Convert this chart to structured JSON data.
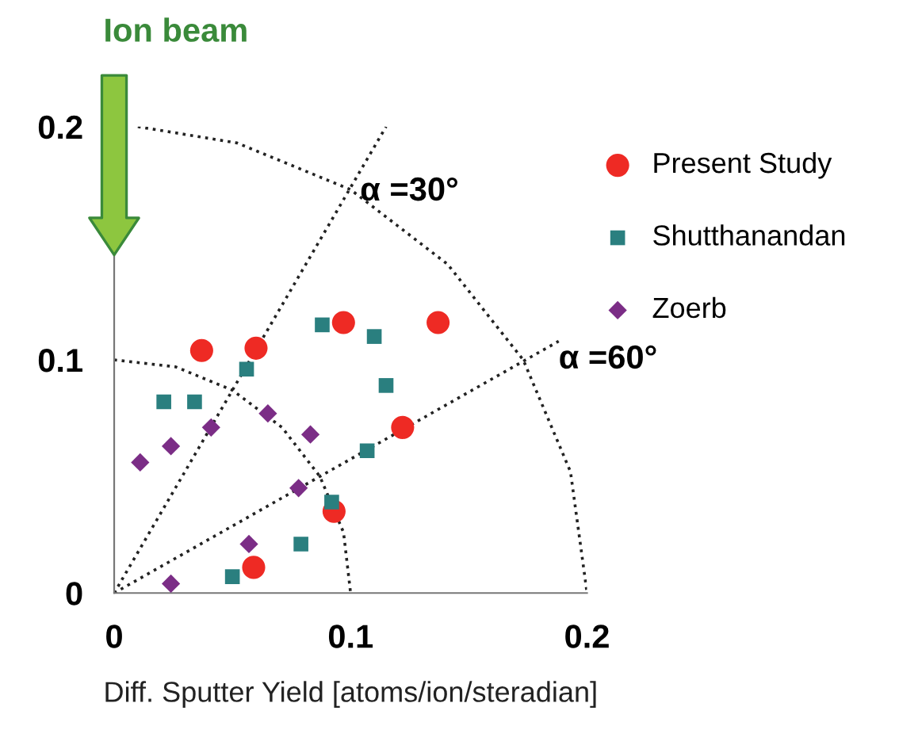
{
  "chart_data": {
    "type": "scatter",
    "xlabel": "Diff. Sputter Yield [atoms/ion/steradian]",
    "xlim": [
      0,
      0.2
    ],
    "ylim": [
      0,
      0.2
    ],
    "xticks": [
      0,
      0.1,
      0.2
    ],
    "yticks": [
      0,
      0.1,
      0.2
    ],
    "grid": false,
    "legend": "right",
    "annotations": [
      "Ion beam",
      "α =30°",
      "α =60°"
    ],
    "series": [
      {
        "name": "Present Study",
        "color": "#ee2a24",
        "marker": "circle",
        "x": [
          0.037,
          0.06,
          0.097,
          0.137,
          0.122,
          0.093,
          0.059
        ],
        "values": [
          0.104,
          0.105,
          0.116,
          0.116,
          0.071,
          0.035,
          0.011
        ]
      },
      {
        "name": "Shutthanandan",
        "color": "#2a7f7f",
        "marker": "square",
        "x": [
          0.088,
          0.11,
          0.115,
          0.056,
          0.021,
          0.034,
          0.107,
          0.092,
          0.079,
          0.05
        ],
        "values": [
          0.115,
          0.11,
          0.089,
          0.096,
          0.082,
          0.082,
          0.061,
          0.039,
          0.021,
          0.007
        ]
      },
      {
        "name": "Zoerb",
        "color": "#7b2d86",
        "marker": "diamond",
        "x": [
          0.011,
          0.024,
          0.041,
          0.065,
          0.083,
          0.078,
          0.057,
          0.024
        ],
        "values": [
          0.056,
          0.063,
          0.071,
          0.077,
          0.068,
          0.045,
          0.021,
          0.004
        ]
      },
      {
        "type": "line",
        "color": "#222222",
        "line_style": "dotted",
        "marker": "none",
        "x": [
          0,
          0.026,
          0.05,
          0.071,
          0.087,
          0.097,
          0.1
        ],
        "values": [
          0.1,
          0.097,
          0.087,
          0.071,
          0.05,
          0.026,
          0
        ]
      },
      {
        "type": "line",
        "color": "#222222",
        "line_style": "dotted",
        "marker": "none",
        "x": [
          0.01,
          0.052,
          0.1,
          0.141,
          0.173,
          0.193,
          0.2
        ],
        "values": [
          0.2,
          0.193,
          0.173,
          0.141,
          0.1,
          0.052,
          0
        ]
      },
      {
        "type": "line",
        "color": "#222222",
        "line_style": "dotted",
        "marker": "none",
        "x": [
          0,
          0.115
        ],
        "values": [
          0,
          0.2
        ]
      },
      {
        "type": "line",
        "color": "#222222",
        "line_style": "dotted",
        "marker": "none",
        "x": [
          0,
          0.188
        ],
        "values": [
          0,
          0.108
        ]
      }
    ]
  }
}
